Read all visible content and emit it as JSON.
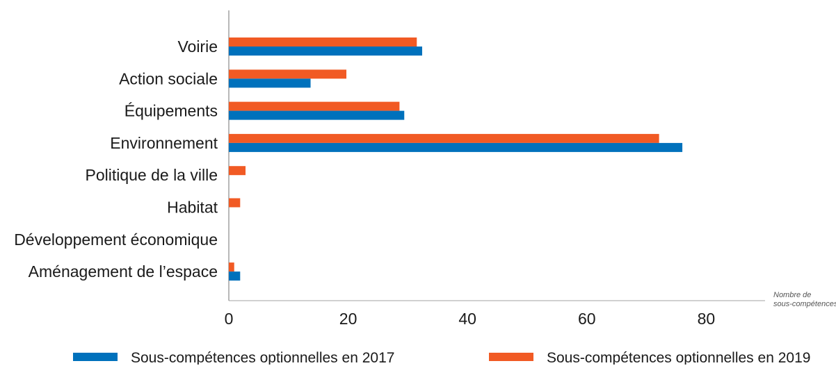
{
  "chart_data": {
    "type": "bar",
    "orientation": "horizontal",
    "categories": [
      "Voirie",
      "Action sociale",
      "Équipements",
      "Environnement",
      "Politique de la ville",
      "Habitat",
      "Développement économique",
      "Aménagement de l’espace"
    ],
    "series": [
      {
        "name": "Sous-compétences optionnelles en 2019",
        "color": "#f15a24",
        "values": [
          31.5,
          19.7,
          28.6,
          72.1,
          2.8,
          1.9,
          0,
          0.9
        ]
      },
      {
        "name": "Sous-compétences optionnelles en 2017",
        "color": "#0071bc",
        "values": [
          32.4,
          13.7,
          29.4,
          76.0,
          0,
          0,
          0,
          1.9
        ]
      }
    ],
    "x_ticks": [
      0,
      20,
      40,
      60,
      80
    ],
    "xlim": [
      0,
      85
    ],
    "unit_label_lines": [
      "Nombre de",
      "sous-compétences"
    ],
    "legend_position": "bottom",
    "legend_order": [
      1,
      0
    ],
    "grid": false
  }
}
